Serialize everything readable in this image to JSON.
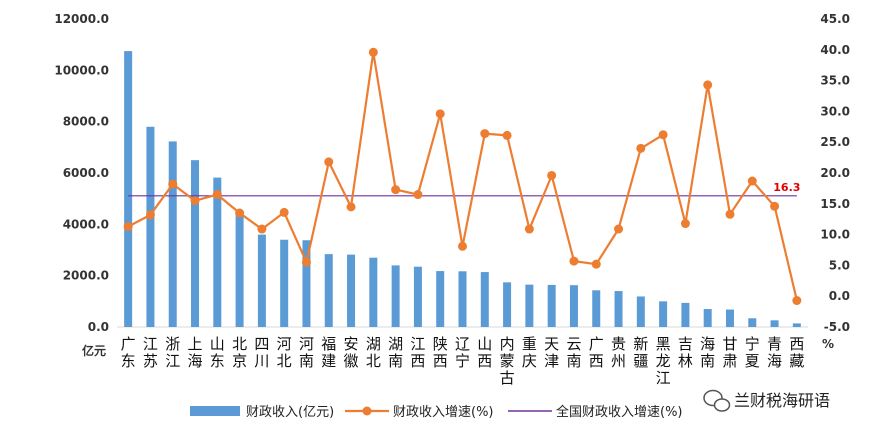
{
  "chart_data": {
    "type": "bar",
    "categories": [
      "广东",
      "江苏",
      "浙江",
      "上海",
      "山东",
      "北京",
      "四川",
      "河北",
      "河南",
      "福建",
      "安徽",
      "湖北",
      "湖南",
      "江西",
      "陕西",
      "辽宁",
      "山西",
      "内蒙古",
      "重庆",
      "天津",
      "云南",
      "广西",
      "贵州",
      "新疆",
      "黑龙江",
      "吉林",
      "海南",
      "甘肃",
      "宁夏",
      "青海",
      "西藏"
    ],
    "series": [
      {
        "name": "财政收入(亿元)",
        "type": "bar",
        "axis": "left",
        "color": "#5b9bd5",
        "values": [
          10750,
          7800,
          7230,
          6500,
          5820,
          4500,
          3600,
          3400,
          3380,
          2840,
          2820,
          2700,
          2400,
          2350,
          2180,
          2170,
          2140,
          1740,
          1650,
          1640,
          1630,
          1430,
          1400,
          1190,
          1000,
          940,
          700,
          680,
          340,
          260,
          140
        ]
      },
      {
        "name": "财政收入增速(%)",
        "type": "line",
        "axis": "right",
        "color": "#ed7d31",
        "values": [
          11.3,
          13.2,
          18.2,
          15.5,
          16.5,
          13.5,
          10.9,
          13.6,
          5.5,
          21.8,
          14.5,
          39.6,
          17.3,
          16.5,
          29.6,
          8.1,
          26.4,
          26.1,
          10.9,
          19.6,
          5.7,
          5.2,
          10.9,
          24.0,
          26.2,
          11.8,
          34.3,
          13.3,
          18.7,
          14.6,
          -0.7
        ]
      },
      {
        "name": "全国财政收入增速(%)",
        "type": "reference",
        "axis": "right",
        "color": "#7030a0",
        "value": 16.3,
        "label": "16.3"
      }
    ],
    "y_left": {
      "min": 0,
      "max": 12000,
      "ticks": [
        "0.0",
        "2000.0",
        "4000.0",
        "6000.0",
        "8000.0",
        "10000.0",
        "12000.0"
      ],
      "unit": "亿元"
    },
    "y_right": {
      "min": -5,
      "max": 45,
      "ticks": [
        "-5.0",
        "0.0",
        "5.0",
        "10.0",
        "15.0",
        "20.0",
        "25.0",
        "30.0",
        "35.0",
        "40.0",
        "45.0"
      ],
      "unit": "%"
    },
    "legend_position": "bottom",
    "grid": false
  },
  "watermark": {
    "text": "兰财税海研语",
    "icon": "wechat-icon"
  }
}
